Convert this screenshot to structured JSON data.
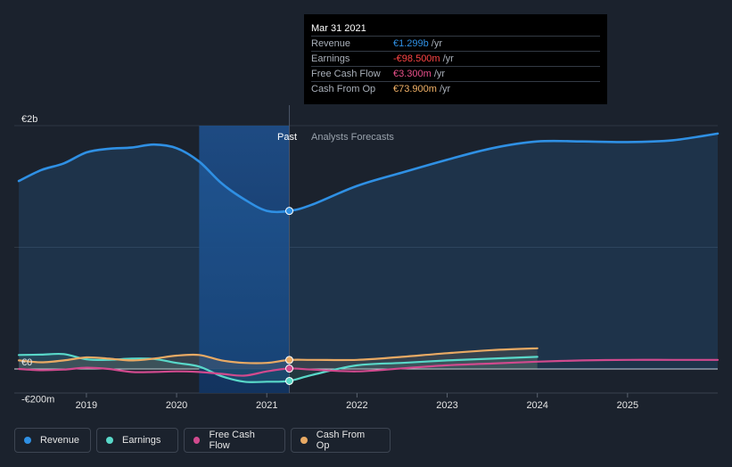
{
  "tooltip": {
    "date": "Mar 31 2021",
    "rows": [
      {
        "label": "Revenue",
        "value": "€1.299b",
        "unit": "/yr",
        "color": "#2f90e4"
      },
      {
        "label": "Earnings",
        "value": "-€98.500m",
        "unit": "/yr",
        "color": "#ff4545"
      },
      {
        "label": "Free Cash Flow",
        "value": "€3.300m",
        "unit": "/yr",
        "color": "#e9508b"
      },
      {
        "label": "Cash From Op",
        "value": "€73.900m",
        "unit": "/yr",
        "color": "#f2b267"
      }
    ]
  },
  "region_labels": {
    "past": "Past",
    "forecast": "Analysts Forecasts"
  },
  "legend": [
    {
      "label": "Revenue",
      "color": "#2f90e4"
    },
    {
      "label": "Earnings",
      "color": "#59d8c9"
    },
    {
      "label": "Free Cash Flow",
      "color": "#d14a8e"
    },
    {
      "label": "Cash From Op",
      "color": "#e9aa64"
    }
  ],
  "chart_data": {
    "type": "line",
    "y_unit": "€m",
    "ylim": [
      -200,
      2000
    ],
    "y_ticks": [
      {
        "value": 2000,
        "label": "€2b"
      },
      {
        "value": 0,
        "label": "€0"
      },
      {
        "value": -200,
        "label": "-€200m"
      }
    ],
    "xlim": [
      2018.2,
      2026.0
    ],
    "x_ticks": [
      {
        "value": 2019,
        "label": "2019"
      },
      {
        "value": 2020,
        "label": "2020"
      },
      {
        "value": 2021,
        "label": "2021"
      },
      {
        "value": 2022,
        "label": "2022"
      },
      {
        "value": 2023,
        "label": "2023"
      },
      {
        "value": 2024,
        "label": "2024"
      },
      {
        "value": 2025,
        "label": "2025"
      }
    ],
    "divider_x": 2021.25,
    "highlight_start_x": 2020.25,
    "grid": true,
    "series": [
      {
        "name": "Revenue",
        "color": "#2f90e4",
        "area": true,
        "points": [
          [
            2018.25,
            1545
          ],
          [
            2018.5,
            1635
          ],
          [
            2018.75,
            1690
          ],
          [
            2019.0,
            1780
          ],
          [
            2019.25,
            1810
          ],
          [
            2019.5,
            1820
          ],
          [
            2019.75,
            1845
          ],
          [
            2020.0,
            1815
          ],
          [
            2020.25,
            1705
          ],
          [
            2020.5,
            1525
          ],
          [
            2020.75,
            1395
          ],
          [
            2021.0,
            1300
          ],
          [
            2021.25,
            1299
          ],
          [
            2021.5,
            1350
          ],
          [
            2022.0,
            1505
          ],
          [
            2022.5,
            1615
          ],
          [
            2023.0,
            1720
          ],
          [
            2023.5,
            1815
          ],
          [
            2024.0,
            1870
          ],
          [
            2024.5,
            1870
          ],
          [
            2025.0,
            1865
          ],
          [
            2025.5,
            1880
          ],
          [
            2026.0,
            1935
          ]
        ]
      },
      {
        "name": "Earnings",
        "color": "#59d8c9",
        "area": true,
        "points": [
          [
            2018.25,
            115
          ],
          [
            2018.5,
            118
          ],
          [
            2018.75,
            122
          ],
          [
            2019.0,
            80
          ],
          [
            2019.25,
            75
          ],
          [
            2019.5,
            85
          ],
          [
            2019.75,
            82
          ],
          [
            2020.0,
            50
          ],
          [
            2020.25,
            20
          ],
          [
            2020.5,
            -60
          ],
          [
            2020.75,
            -105
          ],
          [
            2021.0,
            -105
          ],
          [
            2021.25,
            -98.5
          ],
          [
            2021.5,
            -50
          ],
          [
            2022.0,
            30
          ],
          [
            2022.5,
            50
          ],
          [
            2023.0,
            70
          ],
          [
            2023.5,
            85
          ],
          [
            2024.0,
            100
          ]
        ]
      },
      {
        "name": "Free Cash Flow",
        "color": "#d14a8e",
        "area": false,
        "points": [
          [
            2018.25,
            0
          ],
          [
            2018.5,
            -10
          ],
          [
            2018.75,
            -5
          ],
          [
            2019.0,
            10
          ],
          [
            2019.25,
            0
          ],
          [
            2019.5,
            -25
          ],
          [
            2019.75,
            -25
          ],
          [
            2020.0,
            -20
          ],
          [
            2020.25,
            -25
          ],
          [
            2020.5,
            -40
          ],
          [
            2020.75,
            -55
          ],
          [
            2021.0,
            -20
          ],
          [
            2021.25,
            3.3
          ],
          [
            2021.5,
            -5
          ],
          [
            2022.0,
            -20
          ],
          [
            2022.5,
            5
          ],
          [
            2023.0,
            30
          ],
          [
            2023.5,
            45
          ],
          [
            2024.0,
            60
          ],
          [
            2024.5,
            70
          ],
          [
            2025.0,
            75
          ],
          [
            2025.5,
            75
          ],
          [
            2026.0,
            75
          ]
        ]
      },
      {
        "name": "Cash From Op",
        "color": "#e9aa64",
        "area": true,
        "points": [
          [
            2018.25,
            70
          ],
          [
            2018.5,
            55
          ],
          [
            2018.75,
            70
          ],
          [
            2019.0,
            95
          ],
          [
            2019.25,
            85
          ],
          [
            2019.5,
            70
          ],
          [
            2019.75,
            85
          ],
          [
            2020.0,
            110
          ],
          [
            2020.25,
            115
          ],
          [
            2020.5,
            70
          ],
          [
            2020.75,
            50
          ],
          [
            2021.0,
            50
          ],
          [
            2021.25,
            73.9
          ],
          [
            2021.5,
            75
          ],
          [
            2022.0,
            75
          ],
          [
            2022.5,
            100
          ],
          [
            2023.0,
            130
          ],
          [
            2023.5,
            155
          ],
          [
            2024.0,
            170
          ]
        ]
      }
    ]
  }
}
